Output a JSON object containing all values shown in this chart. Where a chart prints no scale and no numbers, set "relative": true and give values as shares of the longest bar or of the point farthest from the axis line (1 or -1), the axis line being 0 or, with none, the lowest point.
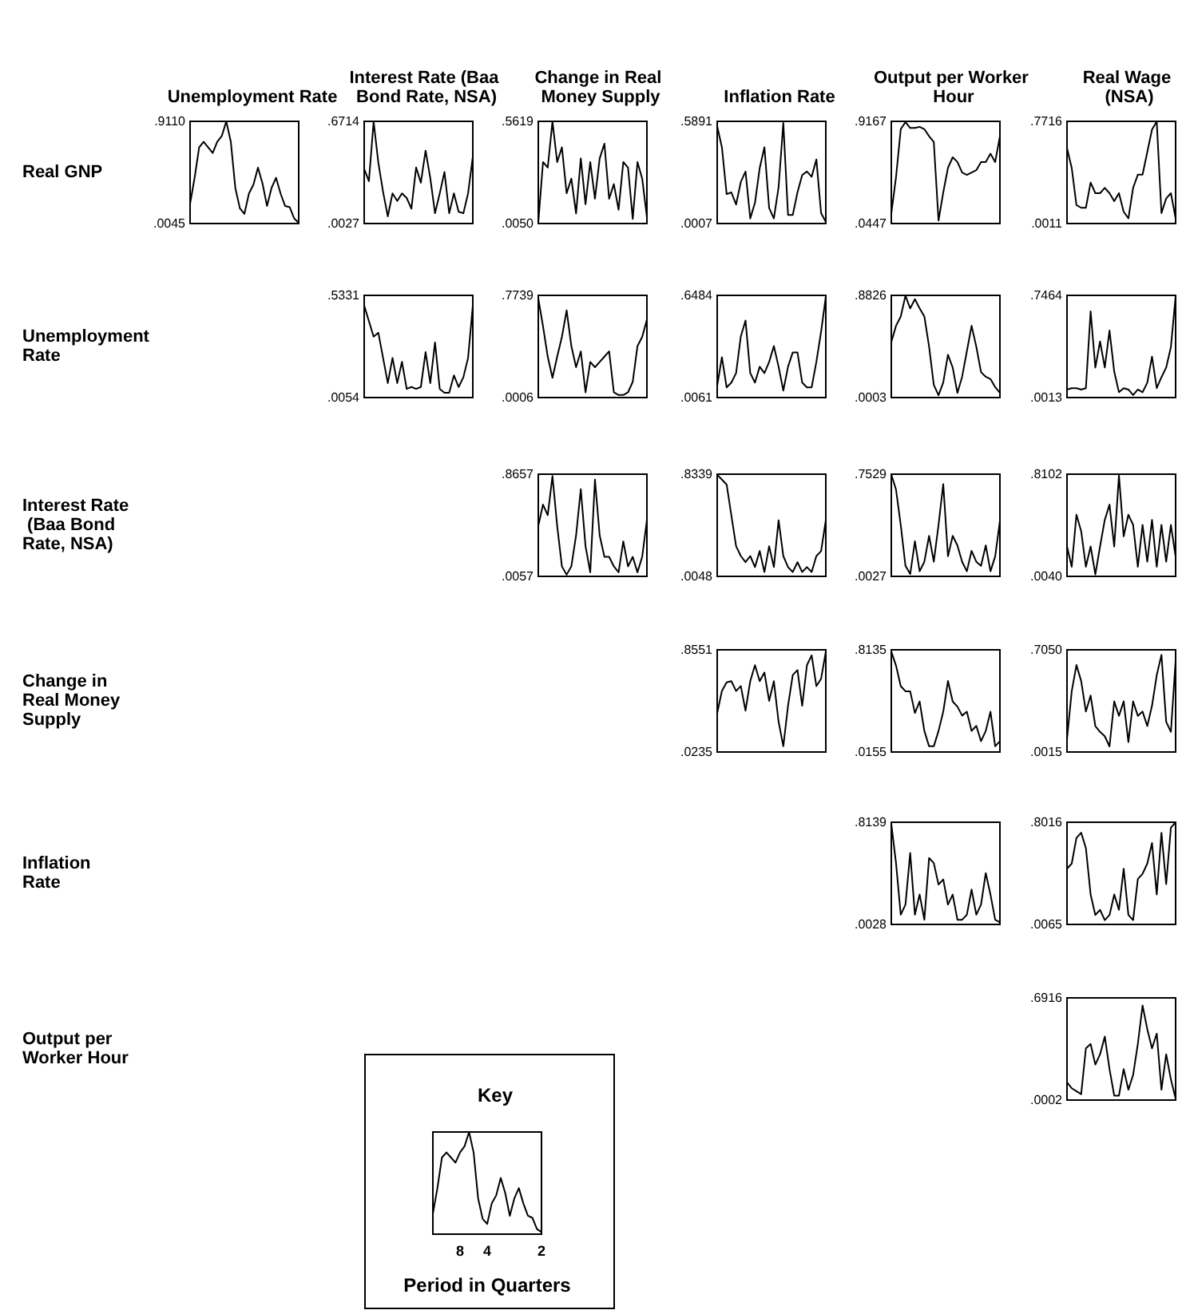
{
  "chart_data": [
    {
      "type": "line",
      "title": "Unemployment Rate",
      "ylabel": "Real GNP",
      "color": "#000000",
      "ylim": [
        0.0045,
        0.911
      ],
      "yticks": [
        {
          "value": 0.0045,
          "label": ".0045"
        },
        {
          "value": 0.911,
          "label": ".9110"
        }
      ],
      "categories": [
        null,
        null,
        null,
        null,
        null,
        null,
        null,
        null,
        null,
        null,
        null,
        null,
        null,
        null,
        null,
        null,
        null,
        null,
        null,
        null,
        null,
        null,
        null,
        null,
        null
      ],
      "values": [
        0.18,
        0.41,
        0.68,
        0.73,
        0.68,
        0.63,
        0.73,
        0.78,
        0.91,
        0.73,
        0.32,
        0.14,
        0.09,
        0.27,
        0.35,
        0.5,
        0.36,
        0.16,
        0.32,
        0.41,
        0.27,
        0.16,
        0.15,
        0.05,
        0.01
      ]
    },
    {
      "type": "line",
      "title": "Interest Rate (Baa Bond Rate, NSA)",
      "color": "#000000",
      "ylim": [
        0.0027,
        0.6714
      ],
      "yticks": [
        {
          "value": 0.0027,
          "label": ".0027"
        },
        {
          "value": 0.6714,
          "label": ".6714"
        }
      ],
      "categories": [
        null,
        null,
        null,
        null,
        null,
        null,
        null,
        null,
        null,
        null,
        null,
        null,
        null,
        null,
        null,
        null,
        null,
        null,
        null,
        null,
        null,
        null,
        null,
        null
      ],
      "values": [
        0.36,
        0.28,
        0.67,
        0.4,
        0.21,
        0.05,
        0.2,
        0.15,
        0.2,
        0.17,
        0.1,
        0.37,
        0.27,
        0.48,
        0.3,
        0.07,
        0.2,
        0.34,
        0.07,
        0.2,
        0.08,
        0.07,
        0.2,
        0.44
      ]
    },
    {
      "type": "line",
      "title": "Change in Real Money Supply",
      "color": "#000000",
      "ylim": [
        0.005,
        0.5619
      ],
      "yticks": [
        {
          "value": 0.005,
          "label": ".0050"
        },
        {
          "value": 0.5619,
          "label": ".5619"
        }
      ],
      "categories": [
        null,
        null,
        null,
        null,
        null,
        null,
        null,
        null,
        null,
        null,
        null,
        null,
        null,
        null,
        null,
        null,
        null,
        null,
        null,
        null,
        null,
        null,
        null,
        null
      ],
      "values": [
        0.01,
        0.34,
        0.31,
        0.56,
        0.34,
        0.42,
        0.17,
        0.25,
        0.06,
        0.36,
        0.11,
        0.34,
        0.14,
        0.36,
        0.44,
        0.14,
        0.22,
        0.08,
        0.34,
        0.31,
        0.03,
        0.34,
        0.25,
        0.04
      ]
    },
    {
      "type": "line",
      "title": "Inflation Rate",
      "color": "#000000",
      "ylim": [
        0.0007,
        0.5891
      ],
      "yticks": [
        {
          "value": 0.0007,
          "label": ".0007"
        },
        {
          "value": 0.5891,
          "label": ".5891"
        }
      ],
      "categories": [
        null,
        null,
        null,
        null,
        null,
        null,
        null,
        null,
        null,
        null,
        null,
        null,
        null,
        null,
        null,
        null,
        null,
        null,
        null,
        null,
        null,
        null,
        null,
        null
      ],
      "values": [
        0.56,
        0.44,
        0.17,
        0.18,
        0.11,
        0.24,
        0.3,
        0.03,
        0.12,
        0.32,
        0.44,
        0.09,
        0.03,
        0.21,
        0.58,
        0.05,
        0.05,
        0.18,
        0.28,
        0.3,
        0.27,
        0.37,
        0.06,
        0.01
      ]
    },
    {
      "type": "line",
      "title": "Output per Worker Hour",
      "color": "#000000",
      "ylim": [
        0.0447,
        0.9167
      ],
      "yticks": [
        {
          "value": 0.0447,
          "label": ".0447"
        },
        {
          "value": 0.9167,
          "label": ".9167"
        }
      ],
      "categories": [
        null,
        null,
        null,
        null,
        null,
        null,
        null,
        null,
        null,
        null,
        null,
        null,
        null,
        null,
        null,
        null,
        null,
        null,
        null,
        null,
        null,
        null,
        null,
        null
      ],
      "values": [
        0.13,
        0.44,
        0.85,
        0.91,
        0.86,
        0.86,
        0.87,
        0.85,
        0.79,
        0.74,
        0.07,
        0.31,
        0.52,
        0.61,
        0.57,
        0.48,
        0.46,
        0.48,
        0.5,
        0.57,
        0.57,
        0.64,
        0.57,
        0.79
      ]
    },
    {
      "type": "line",
      "title": "Real Wage (NSA)",
      "color": "#000000",
      "ylim": [
        0.0011,
        0.7716
      ],
      "yticks": [
        {
          "value": 0.0011,
          "label": ".0011"
        },
        {
          "value": 0.7716,
          "label": ".7716"
        }
      ],
      "categories": [
        null,
        null,
        null,
        null,
        null,
        null,
        null,
        null,
        null,
        null,
        null,
        null,
        null,
        null,
        null,
        null,
        null,
        null,
        null,
        null,
        null,
        null,
        null,
        null
      ],
      "values": [
        0.57,
        0.42,
        0.14,
        0.12,
        0.12,
        0.31,
        0.23,
        0.23,
        0.27,
        0.23,
        0.17,
        0.23,
        0.09,
        0.04,
        0.27,
        0.37,
        0.37,
        0.54,
        0.71,
        0.77,
        0.08,
        0.19,
        0.23,
        0.04
      ]
    },
    {
      "type": "line",
      "ylabel": "Unemployment Rate",
      "color": "#000000",
      "ylim": [
        0.0054,
        0.5331
      ],
      "yticks": [
        {
          "value": 0.0054,
          "label": ".0054"
        },
        {
          "value": 0.5331,
          "label": ".5331"
        }
      ],
      "categories": [
        null,
        null,
        null,
        null,
        null,
        null,
        null,
        null,
        null,
        null,
        null,
        null,
        null,
        null,
        null,
        null,
        null,
        null,
        null,
        null,
        null,
        null,
        null,
        null
      ],
      "values": [
        0.48,
        0.4,
        0.32,
        0.34,
        0.21,
        0.08,
        0.21,
        0.08,
        0.19,
        0.05,
        0.06,
        0.05,
        0.06,
        0.24,
        0.08,
        0.29,
        0.05,
        0.03,
        0.03,
        0.12,
        0.06,
        0.11,
        0.21,
        0.48
      ]
    },
    {
      "type": "line",
      "color": "#000000",
      "ylim": [
        0.0006,
        0.7739
      ],
      "yticks": [
        {
          "value": 0.0006,
          "label": ".0006"
        },
        {
          "value": 0.7739,
          "label": ".7739"
        }
      ],
      "categories": [
        null,
        null,
        null,
        null,
        null,
        null,
        null,
        null,
        null,
        null,
        null,
        null,
        null,
        null,
        null,
        null,
        null,
        null,
        null,
        null,
        null,
        null,
        null,
        null
      ],
      "values": [
        0.75,
        0.54,
        0.31,
        0.15,
        0.31,
        0.46,
        0.66,
        0.39,
        0.23,
        0.35,
        0.04,
        0.27,
        0.23,
        0.27,
        0.31,
        0.35,
        0.04,
        0.02,
        0.02,
        0.04,
        0.12,
        0.39,
        0.46,
        0.59
      ]
    },
    {
      "type": "line",
      "color": "#000000",
      "ylim": [
        0.0061,
        0.6484
      ],
      "yticks": [
        {
          "value": 0.0061,
          "label": ".0061"
        },
        {
          "value": 0.6484,
          "label": ".6484"
        }
      ],
      "categories": [
        null,
        null,
        null,
        null,
        null,
        null,
        null,
        null,
        null,
        null,
        null,
        null,
        null,
        null,
        null,
        null,
        null,
        null,
        null,
        null,
        null,
        null,
        null,
        null
      ],
      "values": [
        0.08,
        0.26,
        0.07,
        0.1,
        0.16,
        0.39,
        0.49,
        0.16,
        0.1,
        0.2,
        0.16,
        0.23,
        0.33,
        0.2,
        0.05,
        0.2,
        0.29,
        0.29,
        0.1,
        0.07,
        0.07,
        0.23,
        0.42,
        0.64
      ]
    },
    {
      "type": "line",
      "color": "#000000",
      "ylim": [
        0.0003,
        0.8826
      ],
      "yticks": [
        {
          "value": 0.0003,
          "label": ".0003"
        },
        {
          "value": 0.8826,
          "label": ".8826"
        }
      ],
      "categories": [
        null,
        null,
        null,
        null,
        null,
        null,
        null,
        null,
        null,
        null,
        null,
        null,
        null,
        null,
        null,
        null,
        null,
        null,
        null,
        null,
        null,
        null,
        null,
        null
      ],
      "values": [
        0.48,
        0.62,
        0.7,
        0.88,
        0.77,
        0.85,
        0.77,
        0.7,
        0.44,
        0.11,
        0.02,
        0.13,
        0.37,
        0.26,
        0.04,
        0.18,
        0.4,
        0.62,
        0.44,
        0.22,
        0.18,
        0.16,
        0.09,
        0.04
      ]
    },
    {
      "type": "line",
      "color": "#000000",
      "ylim": [
        0.0013,
        0.7464
      ],
      "yticks": [
        {
          "value": 0.0013,
          "label": ".0013"
        },
        {
          "value": 0.7464,
          "label": ".7464"
        }
      ],
      "categories": [
        null,
        null,
        null,
        null,
        null,
        null,
        null,
        null,
        null,
        null,
        null,
        null,
        null,
        null,
        null,
        null,
        null,
        null,
        null,
        null,
        null,
        null,
        null,
        null
      ],
      "values": [
        0.06,
        0.07,
        0.07,
        0.06,
        0.07,
        0.63,
        0.22,
        0.41,
        0.22,
        0.49,
        0.19,
        0.04,
        0.07,
        0.06,
        0.02,
        0.06,
        0.04,
        0.11,
        0.3,
        0.07,
        0.15,
        0.22,
        0.37,
        0.74
      ]
    },
    {
      "type": "line",
      "ylabel": "Interest Rate (Baa Bond Rate, NSA)",
      "color": "#000000",
      "ylim": [
        0.0057,
        0.8657
      ],
      "yticks": [
        {
          "value": 0.0057,
          "label": ".0057"
        },
        {
          "value": 0.8657,
          "label": ".8657"
        }
      ],
      "categories": [
        null,
        null,
        null,
        null,
        null,
        null,
        null,
        null,
        null,
        null,
        null,
        null,
        null,
        null,
        null,
        null,
        null,
        null,
        null,
        null,
        null,
        null,
        null,
        null
      ],
      "values": [
        0.43,
        0.61,
        0.52,
        0.85,
        0.43,
        0.09,
        0.02,
        0.09,
        0.35,
        0.74,
        0.26,
        0.04,
        0.82,
        0.35,
        0.17,
        0.17,
        0.09,
        0.04,
        0.3,
        0.09,
        0.17,
        0.04,
        0.17,
        0.48
      ]
    },
    {
      "type": "line",
      "color": "#000000",
      "ylim": [
        0.0048,
        0.8339
      ],
      "yticks": [
        {
          "value": 0.0048,
          "label": ".0048"
        },
        {
          "value": 0.8339,
          "label": ".8339"
        }
      ],
      "categories": [
        null,
        null,
        null,
        null,
        null,
        null,
        null,
        null,
        null,
        null,
        null,
        null,
        null,
        null,
        null,
        null,
        null,
        null,
        null,
        null,
        null,
        null,
        null,
        null
      ],
      "values": [
        0.83,
        0.79,
        0.75,
        0.5,
        0.25,
        0.17,
        0.12,
        0.17,
        0.08,
        0.21,
        0.04,
        0.25,
        0.08,
        0.46,
        0.17,
        0.08,
        0.04,
        0.12,
        0.04,
        0.08,
        0.04,
        0.17,
        0.21,
        0.46
      ]
    },
    {
      "type": "line",
      "color": "#000000",
      "ylim": [
        0.0027,
        0.7529
      ],
      "yticks": [
        {
          "value": 0.0027,
          "label": ".0027"
        },
        {
          "value": 0.7529,
          "label": ".7529"
        }
      ],
      "categories": [
        null,
        null,
        null,
        null,
        null,
        null,
        null,
        null,
        null,
        null,
        null,
        null,
        null,
        null,
        null,
        null,
        null,
        null,
        null,
        null,
        null,
        null,
        null,
        null
      ],
      "values": [
        0.75,
        0.64,
        0.38,
        0.08,
        0.02,
        0.26,
        0.04,
        0.11,
        0.3,
        0.11,
        0.38,
        0.68,
        0.15,
        0.3,
        0.23,
        0.11,
        0.04,
        0.19,
        0.11,
        0.08,
        0.23,
        0.04,
        0.15,
        0.41
      ]
    },
    {
      "type": "line",
      "color": "#000000",
      "ylim": [
        0.004,
        0.8102
      ],
      "yticks": [
        {
          "value": 0.004,
          "label": ".0040"
        },
        {
          "value": 0.8102,
          "label": ".8102"
        }
      ],
      "categories": [
        null,
        null,
        null,
        null,
        null,
        null,
        null,
        null,
        null,
        null,
        null,
        null,
        null,
        null,
        null,
        null,
        null,
        null,
        null,
        null,
        null,
        null,
        null,
        null
      ],
      "values": [
        0.24,
        0.08,
        0.49,
        0.36,
        0.08,
        0.24,
        0.02,
        0.24,
        0.45,
        0.57,
        0.24,
        0.8,
        0.32,
        0.49,
        0.41,
        0.08,
        0.41,
        0.12,
        0.45,
        0.08,
        0.41,
        0.12,
        0.41,
        0.16
      ]
    },
    {
      "type": "line",
      "ylabel": "Change in Real Money Supply",
      "color": "#000000",
      "ylim": [
        0.0235,
        0.8551
      ],
      "yticks": [
        {
          "value": 0.0235,
          "label": ".0235"
        },
        {
          "value": 0.8551,
          "label": ".8551"
        }
      ],
      "categories": [
        null,
        null,
        null,
        null,
        null,
        null,
        null,
        null,
        null,
        null,
        null,
        null,
        null,
        null,
        null,
        null,
        null,
        null,
        null,
        null,
        null,
        null,
        null,
        null
      ],
      "values": [
        0.34,
        0.52,
        0.59,
        0.6,
        0.52,
        0.56,
        0.36,
        0.6,
        0.73,
        0.6,
        0.67,
        0.44,
        0.6,
        0.27,
        0.07,
        0.4,
        0.65,
        0.69,
        0.4,
        0.73,
        0.81,
        0.56,
        0.62,
        0.84
      ]
    },
    {
      "type": "line",
      "color": "#000000",
      "ylim": [
        0.0155,
        0.8135
      ],
      "yticks": [
        {
          "value": 0.0155,
          "label": ".0155"
        },
        {
          "value": 0.8135,
          "label": ".8135"
        }
      ],
      "categories": [
        null,
        null,
        null,
        null,
        null,
        null,
        null,
        null,
        null,
        null,
        null,
        null,
        null,
        null,
        null,
        null,
        null,
        null,
        null,
        null,
        null,
        null,
        null,
        null
      ],
      "values": [
        0.8,
        0.69,
        0.53,
        0.49,
        0.49,
        0.32,
        0.41,
        0.18,
        0.06,
        0.06,
        0.18,
        0.33,
        0.57,
        0.41,
        0.37,
        0.3,
        0.33,
        0.18,
        0.22,
        0.1,
        0.18,
        0.33,
        0.06,
        0.1
      ]
    },
    {
      "type": "line",
      "color": "#000000",
      "ylim": [
        0.0015,
        0.705
      ],
      "yticks": [
        {
          "value": 0.0015,
          "label": ".0015"
        },
        {
          "value": 0.705,
          "label": ".7050"
        }
      ],
      "categories": [
        null,
        null,
        null,
        null,
        null,
        null,
        null,
        null,
        null,
        null,
        null,
        null,
        null,
        null,
        null,
        null,
        null,
        null,
        null,
        null,
        null,
        null,
        null,
        null
      ],
      "values": [
        0.09,
        0.42,
        0.6,
        0.49,
        0.28,
        0.39,
        0.18,
        0.14,
        0.11,
        0.04,
        0.35,
        0.25,
        0.35,
        0.07,
        0.35,
        0.25,
        0.28,
        0.18,
        0.32,
        0.53,
        0.67,
        0.21,
        0.14,
        0.63
      ]
    },
    {
      "type": "line",
      "ylabel": "Inflation Rate",
      "color": "#000000",
      "ylim": [
        0.0028,
        0.8139
      ],
      "yticks": [
        {
          "value": 0.0028,
          "label": ".0028"
        },
        {
          "value": 0.8139,
          "label": ".8139"
        }
      ],
      "categories": [
        null,
        null,
        null,
        null,
        null,
        null,
        null,
        null,
        null,
        null,
        null,
        null,
        null,
        null,
        null,
        null,
        null,
        null,
        null,
        null,
        null,
        null,
        null,
        null
      ],
      "values": [
        0.8,
        0.49,
        0.08,
        0.16,
        0.57,
        0.08,
        0.24,
        0.04,
        0.53,
        0.49,
        0.32,
        0.36,
        0.16,
        0.24,
        0.04,
        0.04,
        0.08,
        0.28,
        0.08,
        0.16,
        0.41,
        0.24,
        0.04,
        0.02
      ]
    },
    {
      "type": "line",
      "color": "#000000",
      "ylim": [
        0.0065,
        0.8016
      ],
      "yticks": [
        {
          "value": 0.0065,
          "label": ".0065"
        },
        {
          "value": 0.8016,
          "label": ".8016"
        }
      ],
      "categories": [
        null,
        null,
        null,
        null,
        null,
        null,
        null,
        null,
        null,
        null,
        null,
        null,
        null,
        null,
        null,
        null,
        null,
        null,
        null,
        null,
        null,
        null,
        null,
        null
      ],
      "values": [
        0.44,
        0.48,
        0.68,
        0.72,
        0.6,
        0.24,
        0.08,
        0.12,
        0.04,
        0.08,
        0.24,
        0.12,
        0.44,
        0.08,
        0.04,
        0.36,
        0.4,
        0.48,
        0.64,
        0.24,
        0.72,
        0.32,
        0.76,
        0.8
      ]
    },
    {
      "type": "line",
      "ylabel": "Output per Worker Hour",
      "color": "#000000",
      "ylim": [
        0.0002,
        0.6916
      ],
      "yticks": [
        {
          "value": 0.0002,
          "label": ".0002"
        },
        {
          "value": 0.6916,
          "label": ".6916"
        }
      ],
      "categories": [
        null,
        null,
        null,
        null,
        null,
        null,
        null,
        null,
        null,
        null,
        null,
        null,
        null,
        null,
        null,
        null,
        null,
        null,
        null,
        null,
        null,
        null,
        null,
        null
      ],
      "values": [
        0.12,
        0.08,
        0.06,
        0.04,
        0.35,
        0.38,
        0.24,
        0.31,
        0.43,
        0.21,
        0.03,
        0.03,
        0.21,
        0.07,
        0.17,
        0.38,
        0.64,
        0.48,
        0.35,
        0.45,
        0.07,
        0.31,
        0.14,
        0.01
      ]
    },
    {
      "type": "line",
      "title": "Key",
      "xlabel": "Period in Quarters",
      "color": "#000000",
      "relative": true,
      "categories": [
        null,
        null,
        null,
        null,
        null,
        null,
        "8",
        null,
        null,
        null,
        null,
        null,
        "4",
        null,
        null,
        null,
        null,
        null,
        null,
        null,
        null,
        null,
        null,
        null,
        "2"
      ],
      "values": [
        0.2,
        0.45,
        0.75,
        0.8,
        0.75,
        0.7,
        0.8,
        0.86,
        1,
        0.8,
        0.35,
        0.15,
        0.1,
        0.3,
        0.38,
        0.55,
        0.4,
        0.18,
        0.35,
        0.45,
        0.3,
        0.18,
        0.16,
        0.05,
        0.02
      ]
    }
  ]
}
